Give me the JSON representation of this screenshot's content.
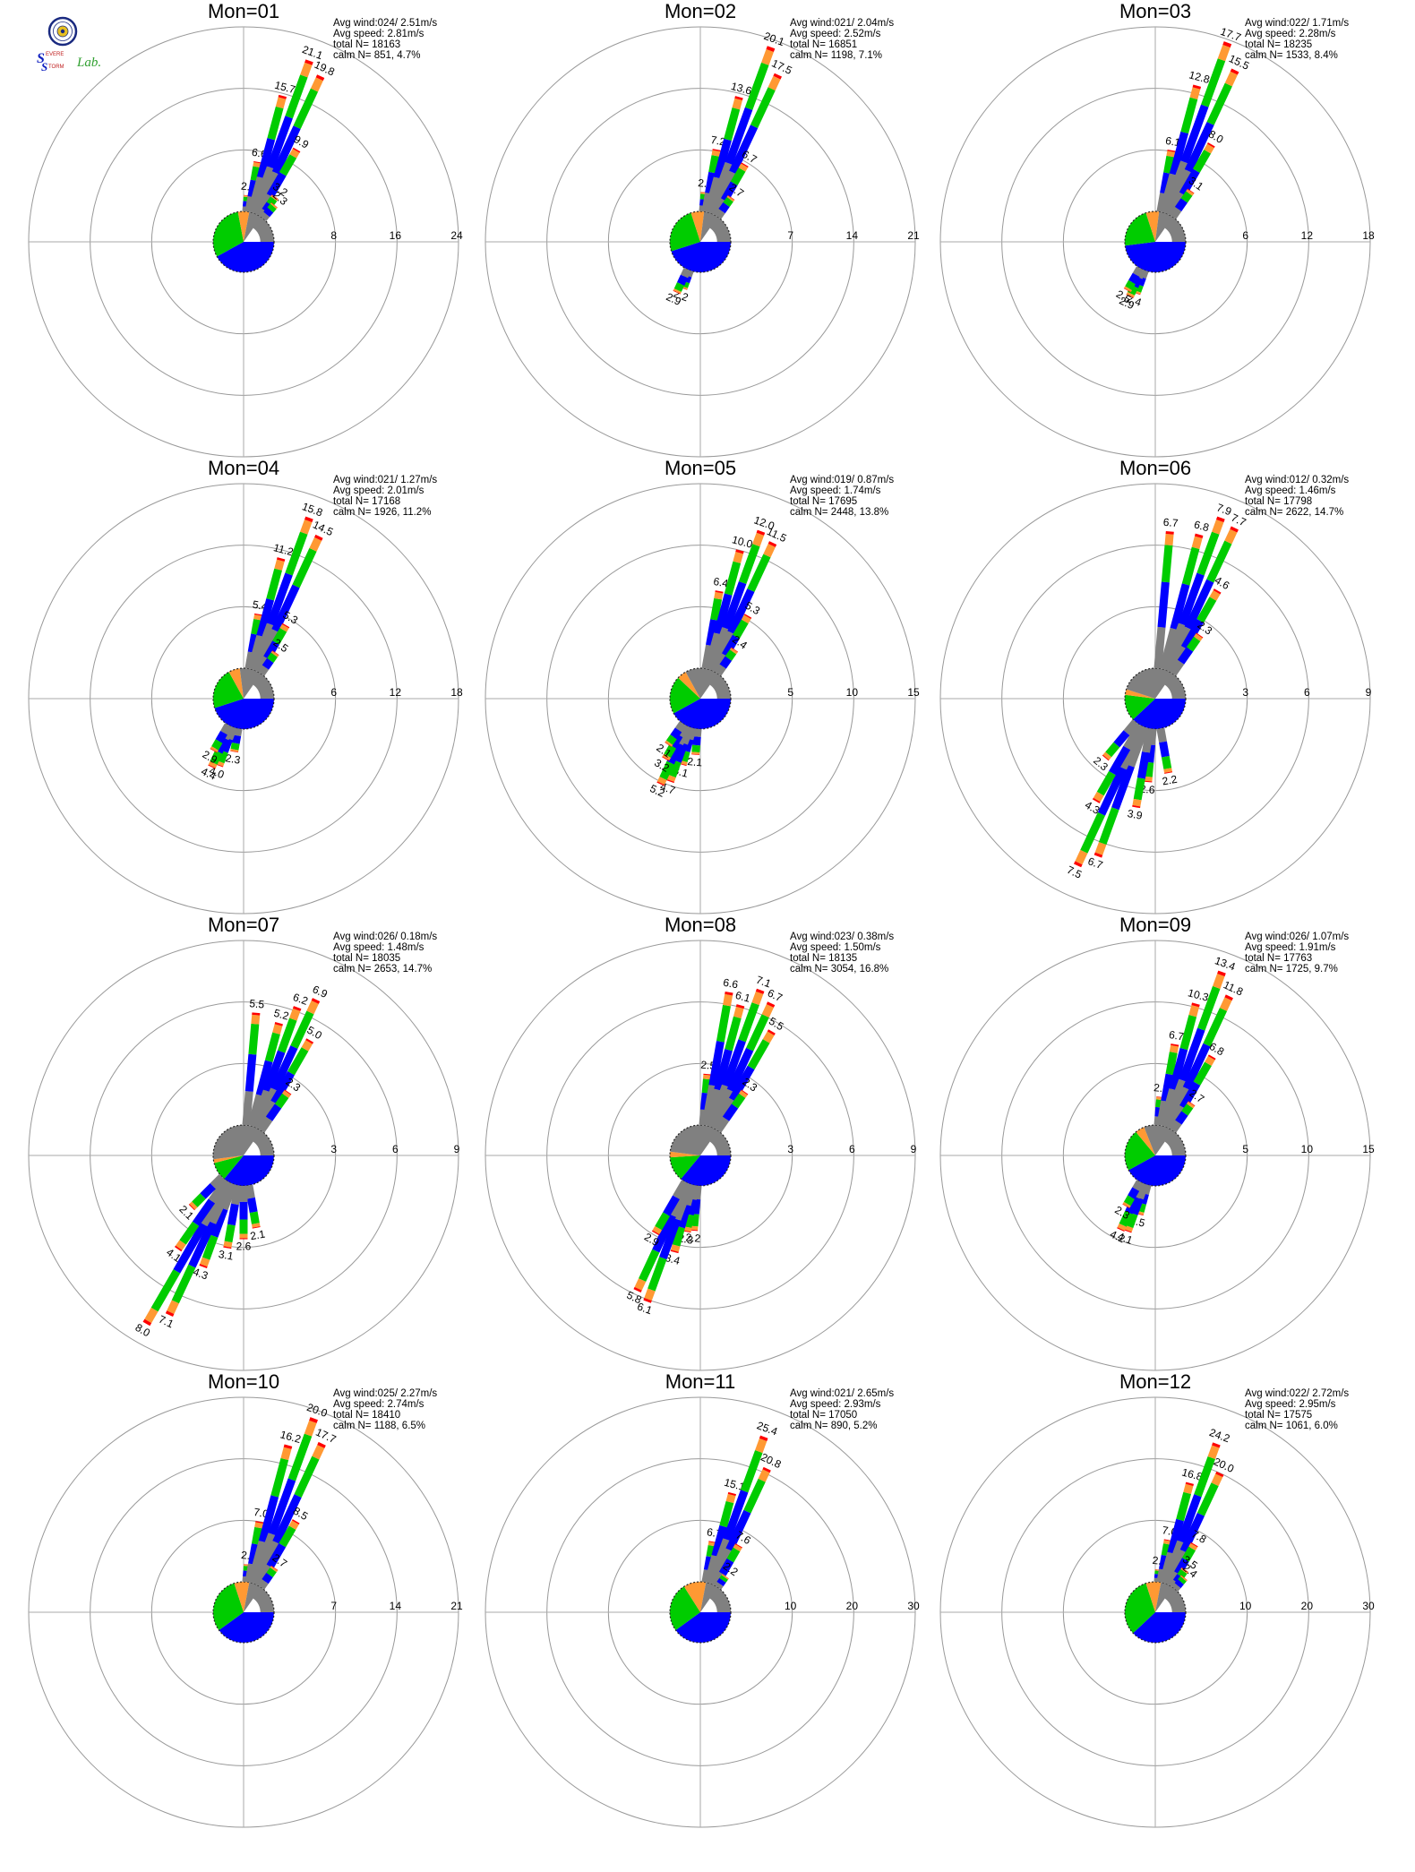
{
  "logo": {
    "s1": "S",
    "t1": "EVERE",
    "s2": "S",
    "t2": "TORM",
    "t3": "Lab."
  },
  "stats_labels": {
    "avg_wind": "Avg wind:",
    "avg_speed": "Avg speed:",
    "total": "total N=",
    "calm": "calm N="
  },
  "colors": {
    "blue": "#0000ff",
    "green": "#00cc00",
    "orange": "#ff9933",
    "red": "#ff0000",
    "gray": "#808080"
  },
  "chart_data": [
    {
      "type": "wind-rose",
      "title": "Mon=01",
      "rmax": 24,
      "ticks": [
        "8",
        "16",
        "24"
      ],
      "avg_wind": "024/ 2.51m/s",
      "avg_speed": "2.81m/s",
      "total_n": "18163",
      "calm_n": "851,",
      "calm_pct": "4.7%",
      "spokes": [
        {
          "dir": 5,
          "value": 2.1,
          "label": "2.1"
        },
        {
          "dir": 10,
          "value": 6.6,
          "label": "6.6"
        },
        {
          "dir": 15,
          "value": 15.7,
          "label": "15.7"
        },
        {
          "dir": 20,
          "value": 21.1,
          "label": "21.1"
        },
        {
          "dir": 25,
          "value": 19.8,
          "label": "19.8"
        },
        {
          "dir": 30,
          "value": 9.9,
          "label": "9.9"
        },
        {
          "dir": 35,
          "value": 3.2,
          "label": "3.2"
        },
        {
          "dir": 40,
          "value": 2.3,
          "label": "2.3"
        }
      ],
      "calm_pie": {
        "blue": 0.42,
        "green": 0.3,
        "orange": 0.06,
        "gray": 0.22
      }
    },
    {
      "type": "wind-rose",
      "title": "Mon=02",
      "rmax": 21,
      "ticks": [
        "7",
        "14",
        "21"
      ],
      "avg_wind": "021/ 2.04m/s",
      "avg_speed": "2.52m/s",
      "total_n": "16851",
      "calm_n": "1198,",
      "calm_pct": "7.1%",
      "spokes": [
        {
          "dir": 5,
          "value": 2.2,
          "label": "2.2"
        },
        {
          "dir": 10,
          "value": 7.2,
          "label": "7.2"
        },
        {
          "dir": 15,
          "value": 13.6,
          "label": "13.6"
        },
        {
          "dir": 20,
          "value": 20.1,
          "label": "20.1"
        },
        {
          "dir": 25,
          "value": 17.5,
          "label": "17.5"
        },
        {
          "dir": 30,
          "value": 6.7,
          "label": "6.7"
        },
        {
          "dir": 35,
          "value": 2.7,
          "label": "2.7"
        },
        {
          "dir": 200,
          "value": 2.2,
          "label": "2.2"
        },
        {
          "dir": 205,
          "value": 2.9,
          "label": "2.9"
        }
      ],
      "calm_pie": {
        "blue": 0.45,
        "green": 0.25,
        "orange": 0.07,
        "gray": 0.23
      }
    },
    {
      "type": "wind-rose",
      "title": "Mon=03",
      "rmax": 18,
      "ticks": [
        "6",
        "12",
        "18"
      ],
      "avg_wind": "022/ 1.71m/s",
      "avg_speed": "2.28m/s",
      "total_n": "18235",
      "calm_n": "1533,",
      "calm_pct": "8.4%",
      "spokes": [
        {
          "dir": 10,
          "value": 6.1,
          "label": "6.1"
        },
        {
          "dir": 15,
          "value": 12.8,
          "label": "12.8"
        },
        {
          "dir": 20,
          "value": 17.7,
          "label": "17.7"
        },
        {
          "dir": 25,
          "value": 15.5,
          "label": "15.5"
        },
        {
          "dir": 30,
          "value": 8.0,
          "label": "8.0"
        },
        {
          "dir": 35,
          "value": 3.1,
          "label": "3.1"
        },
        {
          "dir": 200,
          "value": 2.4,
          "label": "2.4"
        },
        {
          "dir": 205,
          "value": 2.9,
          "label": "2.9"
        },
        {
          "dir": 210,
          "value": 2.5,
          "label": "2.5"
        }
      ],
      "calm_pie": {
        "blue": 0.48,
        "green": 0.22,
        "orange": 0.07,
        "gray": 0.23
      }
    },
    {
      "type": "wind-rose",
      "title": "Mon=04",
      "rmax": 18,
      "ticks": [
        "6",
        "12",
        "18"
      ],
      "avg_wind": "021/ 1.27m/s",
      "avg_speed": "2.01m/s",
      "total_n": "17168",
      "calm_n": "1926,",
      "calm_pct": "11.2%",
      "spokes": [
        {
          "dir": 10,
          "value": 5.4,
          "label": "5.4"
        },
        {
          "dir": 15,
          "value": 11.2,
          "label": "11.2"
        },
        {
          "dir": 20,
          "value": 15.8,
          "label": "15.8"
        },
        {
          "dir": 25,
          "value": 14.5,
          "label": "14.5"
        },
        {
          "dir": 30,
          "value": 5.3,
          "label": "5.3"
        },
        {
          "dir": 35,
          "value": 2.5,
          "label": "2.5"
        },
        {
          "dir": 190,
          "value": 2.3,
          "label": "2.3"
        },
        {
          "dir": 200,
          "value": 4.0,
          "label": "4.0"
        },
        {
          "dir": 205,
          "value": 4.4,
          "label": "4.4"
        },
        {
          "dir": 210,
          "value": 2.9,
          "label": "2.9"
        }
      ],
      "calm_pie": {
        "blue": 0.45,
        "green": 0.22,
        "orange": 0.06,
        "gray": 0.27
      }
    },
    {
      "type": "wind-rose",
      "title": "Mon=05",
      "rmax": 15,
      "ticks": [
        "5",
        "10",
        "15"
      ],
      "avg_wind": "019/ 0.87m/s",
      "avg_speed": "1.74m/s",
      "total_n": "17695",
      "calm_n": "2448,",
      "calm_pct": "13.8%",
      "spokes": [
        {
          "dir": 10,
          "value": 6.4,
          "label": "6.4"
        },
        {
          "dir": 15,
          "value": 10.0,
          "label": "10.0"
        },
        {
          "dir": 20,
          "value": 12.0,
          "label": "12.0"
        },
        {
          "dir": 25,
          "value": 11.5,
          "label": "11.5"
        },
        {
          "dir": 30,
          "value": 5.3,
          "label": "5.3"
        },
        {
          "dir": 35,
          "value": 2.4,
          "label": "2.4"
        },
        {
          "dir": 185,
          "value": 2.1,
          "label": "2.1"
        },
        {
          "dir": 195,
          "value": 3.1,
          "label": "3.1"
        },
        {
          "dir": 200,
          "value": 4.7,
          "label": "4.7"
        },
        {
          "dir": 205,
          "value": 5.2,
          "label": "5.2"
        },
        {
          "dir": 210,
          "value": 3.2,
          "label": "3.2"
        },
        {
          "dir": 215,
          "value": 2.1,
          "label": "2.1"
        }
      ],
      "calm_pie": {
        "blue": 0.42,
        "green": 0.2,
        "orange": 0.05,
        "gray": 0.33
      }
    },
    {
      "type": "wind-rose",
      "title": "Mon=06",
      "rmax": 9,
      "ticks": [
        "3",
        "6",
        "9"
      ],
      "avg_wind": "012/ 0.32m/s",
      "avg_speed": "1.46m/s",
      "total_n": "17798",
      "calm_n": "2622,",
      "calm_pct": "14.7%",
      "spokes": [
        {
          "dir": 5,
          "value": 6.7,
          "label": "6.7"
        },
        {
          "dir": 15,
          "value": 6.8,
          "label": "6.8"
        },
        {
          "dir": 20,
          "value": 7.9,
          "label": "7.9"
        },
        {
          "dir": 25,
          "value": 7.7,
          "label": "7.7"
        },
        {
          "dir": 30,
          "value": 4.6,
          "label": "4.6"
        },
        {
          "dir": 35,
          "value": 2.3,
          "label": "2.3"
        },
        {
          "dir": 170,
          "value": 2.2,
          "label": "2.2"
        },
        {
          "dir": 185,
          "value": 2.6,
          "label": "2.6"
        },
        {
          "dir": 190,
          "value": 3.9,
          "label": "3.9"
        },
        {
          "dir": 200,
          "value": 6.7,
          "label": "6.7"
        },
        {
          "dir": 205,
          "value": 7.5,
          "label": "7.5"
        },
        {
          "dir": 210,
          "value": 4.3,
          "label": "4.3"
        },
        {
          "dir": 220,
          "value": 2.3,
          "label": "2.3"
        }
      ],
      "calm_pie": {
        "blue": 0.38,
        "green": 0.14,
        "orange": 0.03,
        "gray": 0.45
      }
    },
    {
      "type": "wind-rose",
      "title": "Mon=07",
      "rmax": 9,
      "ticks": [
        "3",
        "6",
        "9"
      ],
      "avg_wind": "026/ 0.18m/s",
      "avg_speed": "1.48m/s",
      "total_n": "18035",
      "calm_n": "2653,",
      "calm_pct": "14.7%",
      "spokes": [
        {
          "dir": 5,
          "value": 5.5,
          "label": "5.5"
        },
        {
          "dir": 15,
          "value": 5.2,
          "label": "5.2"
        },
        {
          "dir": 20,
          "value": 6.2,
          "label": "6.2"
        },
        {
          "dir": 25,
          "value": 6.9,
          "label": "6.9"
        },
        {
          "dir": 30,
          "value": 5.0,
          "label": "5.0"
        },
        {
          "dir": 35,
          "value": 2.3,
          "label": "2.3"
        },
        {
          "dir": 170,
          "value": 2.1,
          "label": "2.1"
        },
        {
          "dir": 180,
          "value": 2.6,
          "label": "2.6"
        },
        {
          "dir": 190,
          "value": 3.1,
          "label": "3.1"
        },
        {
          "dir": 200,
          "value": 4.3,
          "label": "4.3"
        },
        {
          "dir": 205,
          "value": 7.1,
          "label": "7.1"
        },
        {
          "dir": 210,
          "value": 8.0,
          "label": "8.0"
        },
        {
          "dir": 215,
          "value": 4.1,
          "label": "4.1"
        },
        {
          "dir": 225,
          "value": 2.1,
          "label": "2.1"
        }
      ],
      "calm_pie": {
        "blue": 0.36,
        "green": 0.1,
        "orange": 0.02,
        "gray": 0.52
      }
    },
    {
      "type": "wind-rose",
      "title": "Mon=08",
      "rmax": 9,
      "ticks": [
        "3",
        "6",
        "9"
      ],
      "avg_wind": "023/ 0.38m/s",
      "avg_speed": "1.50m/s",
      "total_n": "18135",
      "calm_n": "3054,",
      "calm_pct": "16.8%",
      "spokes": [
        {
          "dir": 5,
          "value": 2.5,
          "label": "2.5"
        },
        {
          "dir": 10,
          "value": 6.6,
          "label": "6.6"
        },
        {
          "dir": 15,
          "value": 6.1,
          "label": "6.1"
        },
        {
          "dir": 20,
          "value": 7.1,
          "label": "7.1"
        },
        {
          "dir": 25,
          "value": 6.7,
          "label": "6.7"
        },
        {
          "dir": 30,
          "value": 5.5,
          "label": "5.5"
        },
        {
          "dir": 35,
          "value": 2.3,
          "label": "2.3"
        },
        {
          "dir": 185,
          "value": 2.2,
          "label": "2.2"
        },
        {
          "dir": 190,
          "value": 2.3,
          "label": "2.3"
        },
        {
          "dir": 195,
          "value": 3.4,
          "label": "3.4"
        },
        {
          "dir": 200,
          "value": 6.1,
          "label": "6.1"
        },
        {
          "dir": 205,
          "value": 5.8,
          "label": "5.8"
        },
        {
          "dir": 210,
          "value": 2.9,
          "label": "2.9"
        }
      ],
      "calm_pie": {
        "blue": 0.36,
        "green": 0.13,
        "orange": 0.03,
        "gray": 0.48
      }
    },
    {
      "type": "wind-rose",
      "title": "Mon=09",
      "rmax": 15,
      "ticks": [
        "5",
        "10",
        "15"
      ],
      "avg_wind": "026/ 1.07m/s",
      "avg_speed": "1.91m/s",
      "total_n": "17763",
      "calm_n": "1725,",
      "calm_pct": "9.7%",
      "spokes": [
        {
          "dir": 5,
          "value": 2.3,
          "label": "2.3"
        },
        {
          "dir": 10,
          "value": 6.7,
          "label": "6.7"
        },
        {
          "dir": 15,
          "value": 10.3,
          "label": "10.3"
        },
        {
          "dir": 20,
          "value": 13.4,
          "label": "13.4"
        },
        {
          "dir": 25,
          "value": 11.8,
          "label": "11.8"
        },
        {
          "dir": 30,
          "value": 6.8,
          "label": "6.8"
        },
        {
          "dir": 35,
          "value": 2.7,
          "label": "2.7"
        },
        {
          "dir": 195,
          "value": 2.5,
          "label": "2.5"
        },
        {
          "dir": 200,
          "value": 4.1,
          "label": "4.1"
        },
        {
          "dir": 205,
          "value": 4.2,
          "label": "4.2"
        },
        {
          "dir": 210,
          "value": 2.3,
          "label": "2.3"
        }
      ],
      "calm_pie": {
        "blue": 0.42,
        "green": 0.22,
        "orange": 0.05,
        "gray": 0.31
      }
    },
    {
      "type": "wind-rose",
      "title": "Mon=10",
      "rmax": 21,
      "ticks": [
        "7",
        "14",
        "21"
      ],
      "avg_wind": "025/ 2.27m/s",
      "avg_speed": "2.74m/s",
      "total_n": "18410",
      "calm_n": "1188,",
      "calm_pct": "6.5%",
      "spokes": [
        {
          "dir": 5,
          "value": 2.0,
          "label": "2.0"
        },
        {
          "dir": 10,
          "value": 7.0,
          "label": "7.0"
        },
        {
          "dir": 15,
          "value": 16.2,
          "label": "16.2"
        },
        {
          "dir": 20,
          "value": 20.0,
          "label": "20.0"
        },
        {
          "dir": 25,
          "value": 17.7,
          "label": "17.7"
        },
        {
          "dir": 30,
          "value": 8.5,
          "label": "8.5"
        },
        {
          "dir": 35,
          "value": 2.7,
          "label": "2.7"
        }
      ],
      "calm_pie": {
        "blue": 0.4,
        "green": 0.3,
        "orange": 0.08,
        "gray": 0.22
      }
    },
    {
      "type": "wind-rose",
      "title": "Mon=11",
      "rmax": 30,
      "ticks": [
        "10",
        "20",
        "30"
      ],
      "avg_wind": "021/ 2.65m/s",
      "avg_speed": "2.93m/s",
      "total_n": "17050",
      "calm_n": "890,",
      "calm_pct": "5.2%",
      "spokes": [
        {
          "dir": 10,
          "value": 6.7,
          "label": "6.7"
        },
        {
          "dir": 15,
          "value": 15.1,
          "label": "15.1"
        },
        {
          "dir": 20,
          "value": 25.4,
          "label": "25.4"
        },
        {
          "dir": 25,
          "value": 20.8,
          "label": "20.8"
        },
        {
          "dir": 30,
          "value": 7.6,
          "label": "7.6"
        },
        {
          "dir": 35,
          "value": 2.2,
          "label": "2.2"
        }
      ],
      "calm_pie": {
        "blue": 0.4,
        "green": 0.26,
        "orange": 0.12,
        "gray": 0.22
      }
    },
    {
      "type": "wind-rose",
      "title": "Mon=12",
      "rmax": 30,
      "ticks": [
        "10",
        "20",
        "30"
      ],
      "avg_wind": "022/ 2.72m/s",
      "avg_speed": "2.95m/s",
      "total_n": "17575",
      "calm_n": "1061,",
      "calm_pct": "6.0%",
      "spokes": [
        {
          "dir": 5,
          "value": 2.0,
          "label": "2.0"
        },
        {
          "dir": 10,
          "value": 7.0,
          "label": "7.0"
        },
        {
          "dir": 15,
          "value": 16.8,
          "label": "16.8"
        },
        {
          "dir": 20,
          "value": 24.2,
          "label": "24.2"
        },
        {
          "dir": 25,
          "value": 20.0,
          "label": "20.0"
        },
        {
          "dir": 30,
          "value": 7.8,
          "label": "7.8"
        },
        {
          "dir": 35,
          "value": 3.5,
          "label": "3.5"
        },
        {
          "dir": 40,
          "value": 2.4,
          "label": "2.4"
        }
      ],
      "calm_pie": {
        "blue": 0.38,
        "green": 0.32,
        "orange": 0.08,
        "gray": 0.22
      }
    }
  ]
}
